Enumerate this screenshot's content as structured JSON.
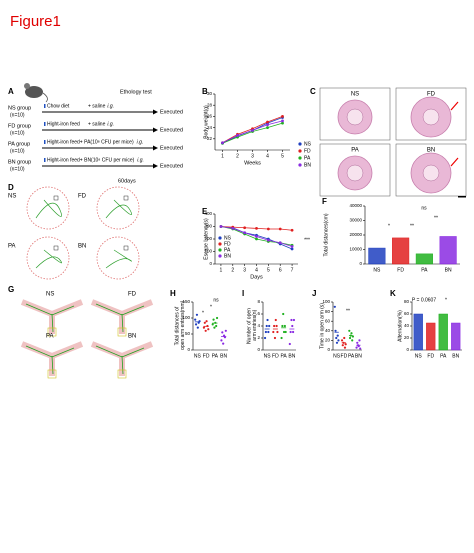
{
  "figure_title": "Figure1",
  "panel_a": {
    "label": "A",
    "test": "Ethology test",
    "groups": [
      {
        "name": "NS group",
        "n": "(n=10)",
        "treatment": "Chow diet",
        "dose": "+ saline",
        "route": "i.g.",
        "result": "Executed"
      },
      {
        "name": "FD group",
        "n": "(n=10)",
        "treatment": "Hight-iron feed",
        "dose": "+ saline",
        "route": "i.g.",
        "result": "Executed"
      },
      {
        "name": "PA group",
        "n": "(n=10)",
        "treatment": "Hight-iron feed+ PA(10⁸ CFU per mice)",
        "route": "i.g.",
        "result": "Executed"
      },
      {
        "name": "BN group",
        "n": "(n=10)",
        "treatment": "Hight-iron feed+ BN(10⁸ CFU per mice)",
        "route": "i.g.",
        "result": "Executed"
      }
    ],
    "duration": "60days"
  },
  "panel_c": {
    "label": "C",
    "groups": [
      "NS",
      "FD",
      "PA",
      "BN"
    ]
  },
  "panel_d": {
    "label": "D",
    "groups": [
      "NS",
      "FD",
      "PA",
      "BN"
    ]
  },
  "panel_g": {
    "label": "G",
    "groups": [
      "NS",
      "FD",
      "PA",
      "BN"
    ]
  },
  "chart_data": [
    {
      "type": "line",
      "panel": "B",
      "y_label": "Body weight(g)",
      "x_label": "Weeks",
      "x": [
        1,
        2,
        3,
        4,
        5
      ],
      "xlim": [
        0.5,
        5.5
      ],
      "xticks": [
        1,
        2,
        3,
        4,
        5
      ],
      "ylim": [
        20,
        30
      ],
      "yticks": [
        22,
        24,
        26,
        28,
        30
      ],
      "legend": "right",
      "series": [
        {
          "name": "NS",
          "color": "#1f3fbf",
          "values": [
            21.2,
            22.5,
            23.5,
            24.8,
            25.8
          ]
        },
        {
          "name": "FD",
          "color": "#e02020",
          "values": [
            21.3,
            22.8,
            23.8,
            25,
            26
          ]
        },
        {
          "name": "PA",
          "color": "#20b020",
          "values": [
            21.2,
            22.3,
            23.3,
            24,
            24.8
          ]
        },
        {
          "name": "BN",
          "color": "#8a2be2",
          "values": [
            21.3,
            22.6,
            23.5,
            24.5,
            25.2
          ]
        }
      ]
    },
    {
      "type": "line",
      "panel": "E",
      "y_label": "Escape Latency(s)",
      "x_label": "Days",
      "x": [
        1,
        2,
        3,
        4,
        5,
        6,
        7
      ],
      "xlim": [
        0.5,
        7.5
      ],
      "xticks": [
        1,
        2,
        3,
        4,
        5,
        6,
        7
      ],
      "ylim": [
        0,
        400
      ],
      "yticks": [
        0,
        100,
        200,
        300,
        400
      ],
      "legend": "lower left",
      "annotations": [
        "***"
      ],
      "series": [
        {
          "name": "NS",
          "color": "#1f3fbf",
          "values": [
            300,
            290,
            250,
            230,
            200,
            160,
            120
          ]
        },
        {
          "name": "FD",
          "color": "#e02020",
          "values": [
            300,
            295,
            290,
            285,
            280,
            280,
            270
          ]
        },
        {
          "name": "PA",
          "color": "#20b020",
          "values": [
            300,
            280,
            240,
            200,
            180,
            170,
            150
          ]
        },
        {
          "name": "BN",
          "color": "#8a2be2",
          "values": [
            300,
            285,
            250,
            220,
            190,
            170,
            140
          ]
        }
      ]
    },
    {
      "type": "bar",
      "panel": "F",
      "y_label": "Total distances(cm)",
      "categories": [
        "NS",
        "FD",
        "PA",
        "BN"
      ],
      "values": [
        11000,
        18000,
        7000,
        19000
      ],
      "colors": [
        "#1f3fbf",
        "#e02020",
        "#20b020",
        "#8a2be2"
      ],
      "ylim": [
        0,
        40000
      ],
      "yticks": [
        0,
        10000,
        20000,
        30000,
        40000
      ],
      "annotations": [
        "*",
        "**",
        "**",
        "ns"
      ]
    },
    {
      "type": "dot",
      "panel": "H",
      "y_label": "Total distances of open arm entries(mm)",
      "categories": [
        "NS",
        "FD",
        "PA",
        "BN"
      ],
      "values": [
        88,
        74,
        84,
        42
      ],
      "points": [
        [
          95,
          80,
          110,
          70,
          85,
          90
        ],
        [
          70,
          85,
          60,
          90,
          75,
          65
        ],
        [
          80,
          95,
          70,
          85,
          75,
          100
        ],
        [
          30,
          55,
          20,
          45,
          40,
          60
        ]
      ],
      "colors": [
        "#1f3fbf",
        "#e02020",
        "#20b020",
        "#8a2be2"
      ],
      "ylim": [
        0,
        150
      ],
      "yticks": [
        0,
        50,
        100,
        150
      ],
      "annotations": [
        "*",
        "*",
        "ns"
      ]
    },
    {
      "type": "dot",
      "panel": "I",
      "y_label": "Number of open arm entries(n)",
      "categories": [
        "NS",
        "FD",
        "PA",
        "BN"
      ],
      "values": [
        3.5,
        3.5,
        3.7,
        3.5
      ],
      "points": [
        [
          2,
          3,
          4,
          5,
          3,
          4
        ],
        [
          3,
          4,
          2,
          5,
          4,
          3
        ],
        [
          2,
          4,
          6,
          3,
          4,
          3
        ],
        [
          1,
          3,
          5,
          4,
          3,
          5
        ]
      ],
      "colors": [
        "#1f3fbf",
        "#e02020",
        "#20b020",
        "#8a2be2"
      ],
      "ylim": [
        0,
        8
      ],
      "yticks": [
        0,
        2,
        4,
        6,
        8
      ]
    },
    {
      "type": "dot",
      "panel": "J",
      "y_label": "Time in open arm (s)",
      "categories": [
        "NS",
        "FD",
        "PA",
        "BN"
      ],
      "values": [
        37,
        15,
        30,
        10
      ],
      "points": [
        [
          90,
          40,
          25,
          15,
          30,
          20
        ],
        [
          20,
          10,
          15,
          25,
          5,
          12
        ],
        [
          40,
          25,
          30,
          35,
          20,
          28
        ],
        [
          5,
          15,
          10,
          8,
          20,
          3
        ]
      ],
      "colors": [
        "#1f3fbf",
        "#e02020",
        "#20b020",
        "#8a2be2"
      ],
      "ylim": [
        0,
        100
      ],
      "yticks": [
        0,
        20,
        40,
        60,
        80,
        100
      ],
      "annotations": [
        "**"
      ]
    },
    {
      "type": "bar",
      "panel": "K",
      "y_label": "Alternation(%)",
      "categories": [
        "NS",
        "FD",
        "PA",
        "BN"
      ],
      "values": [
        60,
        45,
        60,
        45
      ],
      "colors": [
        "#1f3fbf",
        "#e02020",
        "#20b020",
        "#8a2be2"
      ],
      "ylim": [
        0,
        80
      ],
      "yticks": [
        0,
        20,
        40,
        60,
        80
      ],
      "annotations": [
        "P = 0.0607",
        "*"
      ]
    }
  ]
}
